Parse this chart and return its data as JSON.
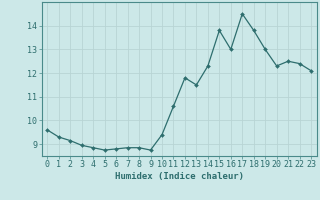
{
  "x": [
    0,
    1,
    2,
    3,
    4,
    5,
    6,
    7,
    8,
    9,
    10,
    11,
    12,
    13,
    14,
    15,
    16,
    17,
    18,
    19,
    20,
    21,
    22,
    23
  ],
  "y": [
    9.6,
    9.3,
    9.15,
    8.95,
    8.85,
    8.75,
    8.8,
    8.85,
    8.85,
    8.75,
    9.4,
    10.6,
    11.8,
    11.5,
    12.3,
    13.8,
    13.0,
    14.5,
    13.8,
    13.0,
    12.3,
    12.5,
    12.4,
    12.1
  ],
  "line_color": "#2e6e6e",
  "marker": "D",
  "marker_size": 2.0,
  "bg_color": "#cce8e8",
  "grid_color": "#b8d4d4",
  "xlabel": "Humidex (Indice chaleur)",
  "ylabel": "",
  "xlim": [
    -0.5,
    23.5
  ],
  "ylim": [
    8.5,
    15.0
  ],
  "yticks": [
    9,
    10,
    11,
    12,
    13,
    14
  ],
  "xticks": [
    0,
    1,
    2,
    3,
    4,
    5,
    6,
    7,
    8,
    9,
    10,
    11,
    12,
    13,
    14,
    15,
    16,
    17,
    18,
    19,
    20,
    21,
    22,
    23
  ],
  "xlabel_fontsize": 6.5,
  "tick_fontsize": 6.0,
  "axis_color": "#2e6e6e",
  "spine_color": "#4a8a8a"
}
